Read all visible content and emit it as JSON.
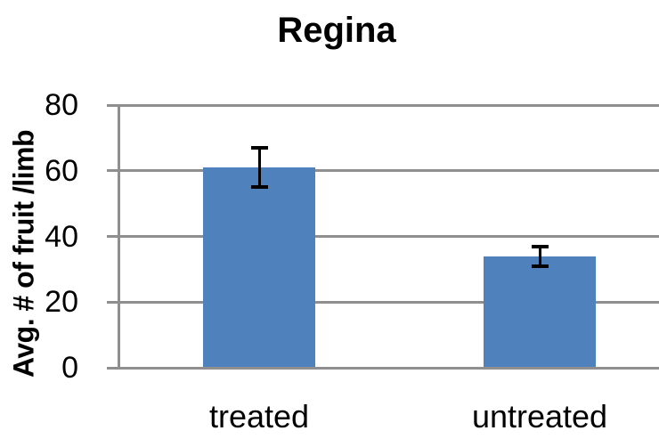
{
  "chart_data": {
    "type": "bar",
    "title": "Regina",
    "categories": [
      "treated",
      "untreated"
    ],
    "values": [
      61,
      34
    ],
    "error_bars": [
      6,
      3
    ],
    "xlabel": "",
    "ylabel": "Avg. # of fruit /limb",
    "ylim": [
      0,
      80
    ],
    "yticks": [
      0,
      20,
      40,
      60,
      80
    ],
    "grid": "horizontal-only",
    "legend_position": "none",
    "bar_color": "#4F81BD",
    "gridline_color": "#8F8F8F",
    "axis_color": "#8F8F8F",
    "error_bar_color": "#000000",
    "text_color": "#000000",
    "background_color": "#FFFFFF"
  }
}
